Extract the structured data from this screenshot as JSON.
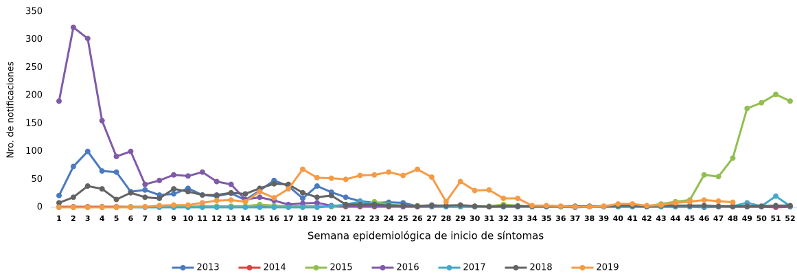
{
  "chart_data": {
    "type": "line",
    "y_label": "Nro. de notificaciones",
    "x_label": "Semana epidemiológica de inicio de síntomas",
    "categories": [
      1,
      2,
      3,
      4,
      5,
      6,
      7,
      8,
      9,
      10,
      11,
      12,
      13,
      14,
      15,
      16,
      17,
      18,
      19,
      20,
      21,
      22,
      23,
      24,
      25,
      26,
      27,
      28,
      29,
      30,
      31,
      32,
      33,
      34,
      35,
      36,
      37,
      38,
      39,
      40,
      41,
      42,
      43,
      44,
      45,
      46,
      47,
      48,
      49,
      50,
      51,
      52
    ],
    "ylim": [
      0,
      350
    ],
    "yticks": [
      0,
      50,
      100,
      150,
      200,
      250,
      300,
      350
    ],
    "legend": "bottom",
    "series": [
      {
        "name": "2013",
        "color": "#4a7ac0",
        "values": [
          21,
          73,
          100,
          65,
          63,
          28,
          31,
          22,
          24,
          34,
          22,
          20,
          25,
          13,
          30,
          48,
          38,
          16,
          38,
          27,
          18,
          11,
          8,
          9,
          8,
          2,
          4,
          2,
          2,
          2,
          1,
          1,
          1,
          1,
          1,
          1,
          0,
          1,
          1,
          1,
          1,
          1,
          1,
          1,
          1,
          0,
          1,
          1,
          1,
          1,
          1,
          1
        ]
      },
      {
        "name": "2014",
        "color": "#d9453d",
        "values": [
          1,
          1,
          1,
          1,
          1,
          1,
          1,
          1,
          1,
          1,
          1,
          1,
          1,
          1,
          1,
          1,
          1,
          1,
          1,
          1,
          1,
          1,
          1,
          1,
          1,
          1,
          1,
          1,
          1,
          1,
          1,
          1,
          1,
          1,
          1,
          1,
          1,
          1,
          1,
          1,
          1,
          1,
          1,
          1,
          1,
          1,
          1,
          1,
          1,
          1,
          0,
          1
        ]
      },
      {
        "name": "2015",
        "color": "#91bf4f",
        "values": [
          0,
          0,
          0,
          0,
          0,
          1,
          1,
          1,
          1,
          1,
          2,
          2,
          2,
          2,
          5,
          3,
          2,
          2,
          2,
          1,
          2,
          3,
          10,
          5,
          3,
          3,
          2,
          1,
          2,
          2,
          2,
          5,
          3,
          1,
          1,
          1,
          1,
          1,
          1,
          2,
          2,
          2,
          6,
          10,
          13,
          58,
          55,
          88,
          177,
          187,
          202,
          190
        ]
      },
      {
        "name": "2016",
        "color": "#7f5aa8",
        "values": [
          190,
          322,
          302,
          155,
          91,
          100,
          41,
          48,
          58,
          56,
          63,
          46,
          41,
          14,
          18,
          12,
          5,
          7,
          8,
          3,
          2,
          2,
          2,
          2,
          1,
          1,
          1,
          1,
          1,
          1,
          1,
          1,
          1,
          1,
          1,
          1,
          1,
          1,
          1,
          1,
          1,
          1,
          1,
          1,
          1,
          1,
          1,
          1,
          1,
          1,
          1,
          1
        ]
      },
      {
        "name": "2017",
        "color": "#43aac8",
        "values": [
          0,
          0,
          0,
          0,
          0,
          0,
          0,
          0,
          0,
          0,
          0,
          0,
          0,
          0,
          0,
          0,
          0,
          0,
          0,
          2,
          5,
          10,
          6,
          4,
          3,
          2,
          2,
          1,
          1,
          1,
          1,
          1,
          1,
          1,
          1,
          1,
          1,
          1,
          1,
          1,
          1,
          1,
          1,
          1,
          1,
          1,
          1,
          2,
          8,
          2,
          20,
          2
        ]
      },
      {
        "name": "2018",
        "color": "#636363",
        "values": [
          8,
          18,
          38,
          33,
          14,
          26,
          18,
          16,
          33,
          28,
          22,
          22,
          26,
          24,
          34,
          42,
          41,
          26,
          18,
          21,
          5,
          5,
          5,
          3,
          3,
          2,
          3,
          3,
          4,
          2,
          1,
          2,
          2,
          2,
          2,
          2,
          2,
          2,
          2,
          3,
          3,
          2,
          3,
          3,
          3,
          3,
          2,
          2,
          2,
          2,
          3,
          3
        ]
      },
      {
        "name": "2019",
        "color": "#f59b45",
        "values": [
          0,
          0,
          0,
          0,
          0,
          0,
          1,
          3,
          4,
          4,
          8,
          12,
          13,
          10,
          28,
          17,
          33,
          68,
          53,
          52,
          50,
          57,
          58,
          63,
          57,
          68,
          54,
          10,
          46,
          30,
          31,
          16,
          16,
          3,
          3,
          2,
          1,
          1,
          2,
          6,
          6,
          3,
          4,
          8,
          10,
          13,
          11,
          9,
          null,
          null,
          null,
          null
        ]
      }
    ]
  }
}
